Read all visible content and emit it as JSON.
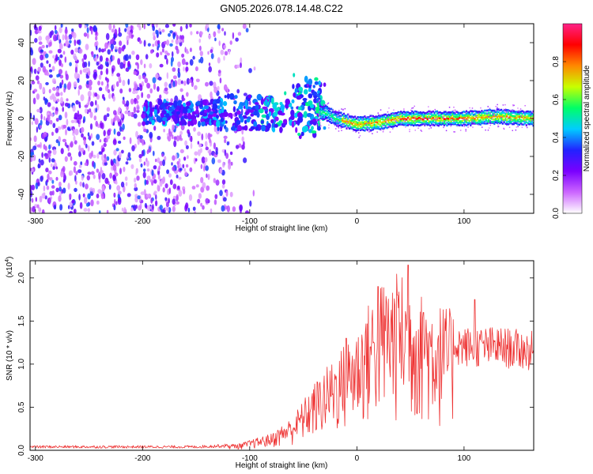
{
  "title": "GN05.2026.078.14.48.C22",
  "chart_data": [
    {
      "type": "heatmap",
      "xlabel": "Height of straight line (km)",
      "ylabel": "Frequency (Hz)",
      "xlim": [
        -305,
        165
      ],
      "ylim": [
        -50,
        50
      ],
      "xticks": [
        -300,
        -200,
        -100,
        0,
        100
      ],
      "yticks": [
        -40,
        -20,
        0,
        20,
        40
      ],
      "colorbar": {
        "label": "Normalized spectral amplitude",
        "range": [
          0,
          1
        ],
        "ticks": [
          "0.0",
          "0.2",
          "0.4",
          "0.6",
          "0.8"
        ],
        "tick_values": [
          0,
          0.2,
          0.4,
          0.6,
          0.8
        ],
        "colormap": [
          "#ffffff",
          "#cc66ff",
          "#7a00ff",
          "#2222ff",
          "#00ccff",
          "#00ff66",
          "#c8ff00",
          "#ff8800",
          "#ff0000",
          "#ff2288"
        ]
      },
      "ridge": [
        {
          "x": -30,
          "freq": 3
        },
        {
          "x": -20,
          "freq": 0
        },
        {
          "x": 0,
          "freq": -3
        },
        {
          "x": 20,
          "freq": -2
        },
        {
          "x": 40,
          "freq": 0
        },
        {
          "x": 60,
          "freq": 0
        },
        {
          "x": 80,
          "freq": 0
        },
        {
          "x": 100,
          "freq": 0
        },
        {
          "x": 130,
          "freq": 1
        },
        {
          "x": 165,
          "freq": 0
        }
      ]
    },
    {
      "type": "line",
      "xlabel": "Height of straight line (km)",
      "ylabel": "SNR (10 * v/v)",
      "scale_label": "(x10",
      "scale_exp": "4",
      "scale_close": ")",
      "xlim": [
        -305,
        165
      ],
      "ylim": [
        0,
        2.2
      ],
      "xticks": [
        -300,
        -200,
        -100,
        0,
        100
      ],
      "yticks": [
        "0.0",
        "0.5",
        "1.0",
        "1.5",
        "2.0"
      ],
      "ytick_values": [
        0,
        0.5,
        1.0,
        1.5,
        2.0
      ],
      "series": [
        {
          "color": "#ee3333",
          "envelope": [
            {
              "x": -305,
              "y": 0.04
            },
            {
              "x": -150,
              "y": 0.04
            },
            {
              "x": -110,
              "y": 0.06
            },
            {
              "x": -80,
              "y": 0.15
            },
            {
              "x": -60,
              "y": 0.3
            },
            {
              "x": -40,
              "y": 0.6
            },
            {
              "x": -20,
              "y": 0.85
            },
            {
              "x": 0,
              "y": 1.1
            },
            {
              "x": 20,
              "y": 1.5
            },
            {
              "x": 40,
              "y": 1.6
            },
            {
              "x": 60,
              "y": 1.4
            },
            {
              "x": 80,
              "y": 1.3
            },
            {
              "x": 100,
              "y": 1.2
            },
            {
              "x": 130,
              "y": 1.2
            },
            {
              "x": 165,
              "y": 1.15
            }
          ],
          "peaks": [
            {
              "x": -10,
              "y": 1.3
            },
            {
              "x": 20,
              "y": 1.9
            },
            {
              "x": 38,
              "y": 1.8
            },
            {
              "x": 48,
              "y": 2.15
            },
            {
              "x": 62,
              "y": 1.6
            },
            {
              "x": 110,
              "y": 1.75
            }
          ]
        }
      ]
    }
  ]
}
